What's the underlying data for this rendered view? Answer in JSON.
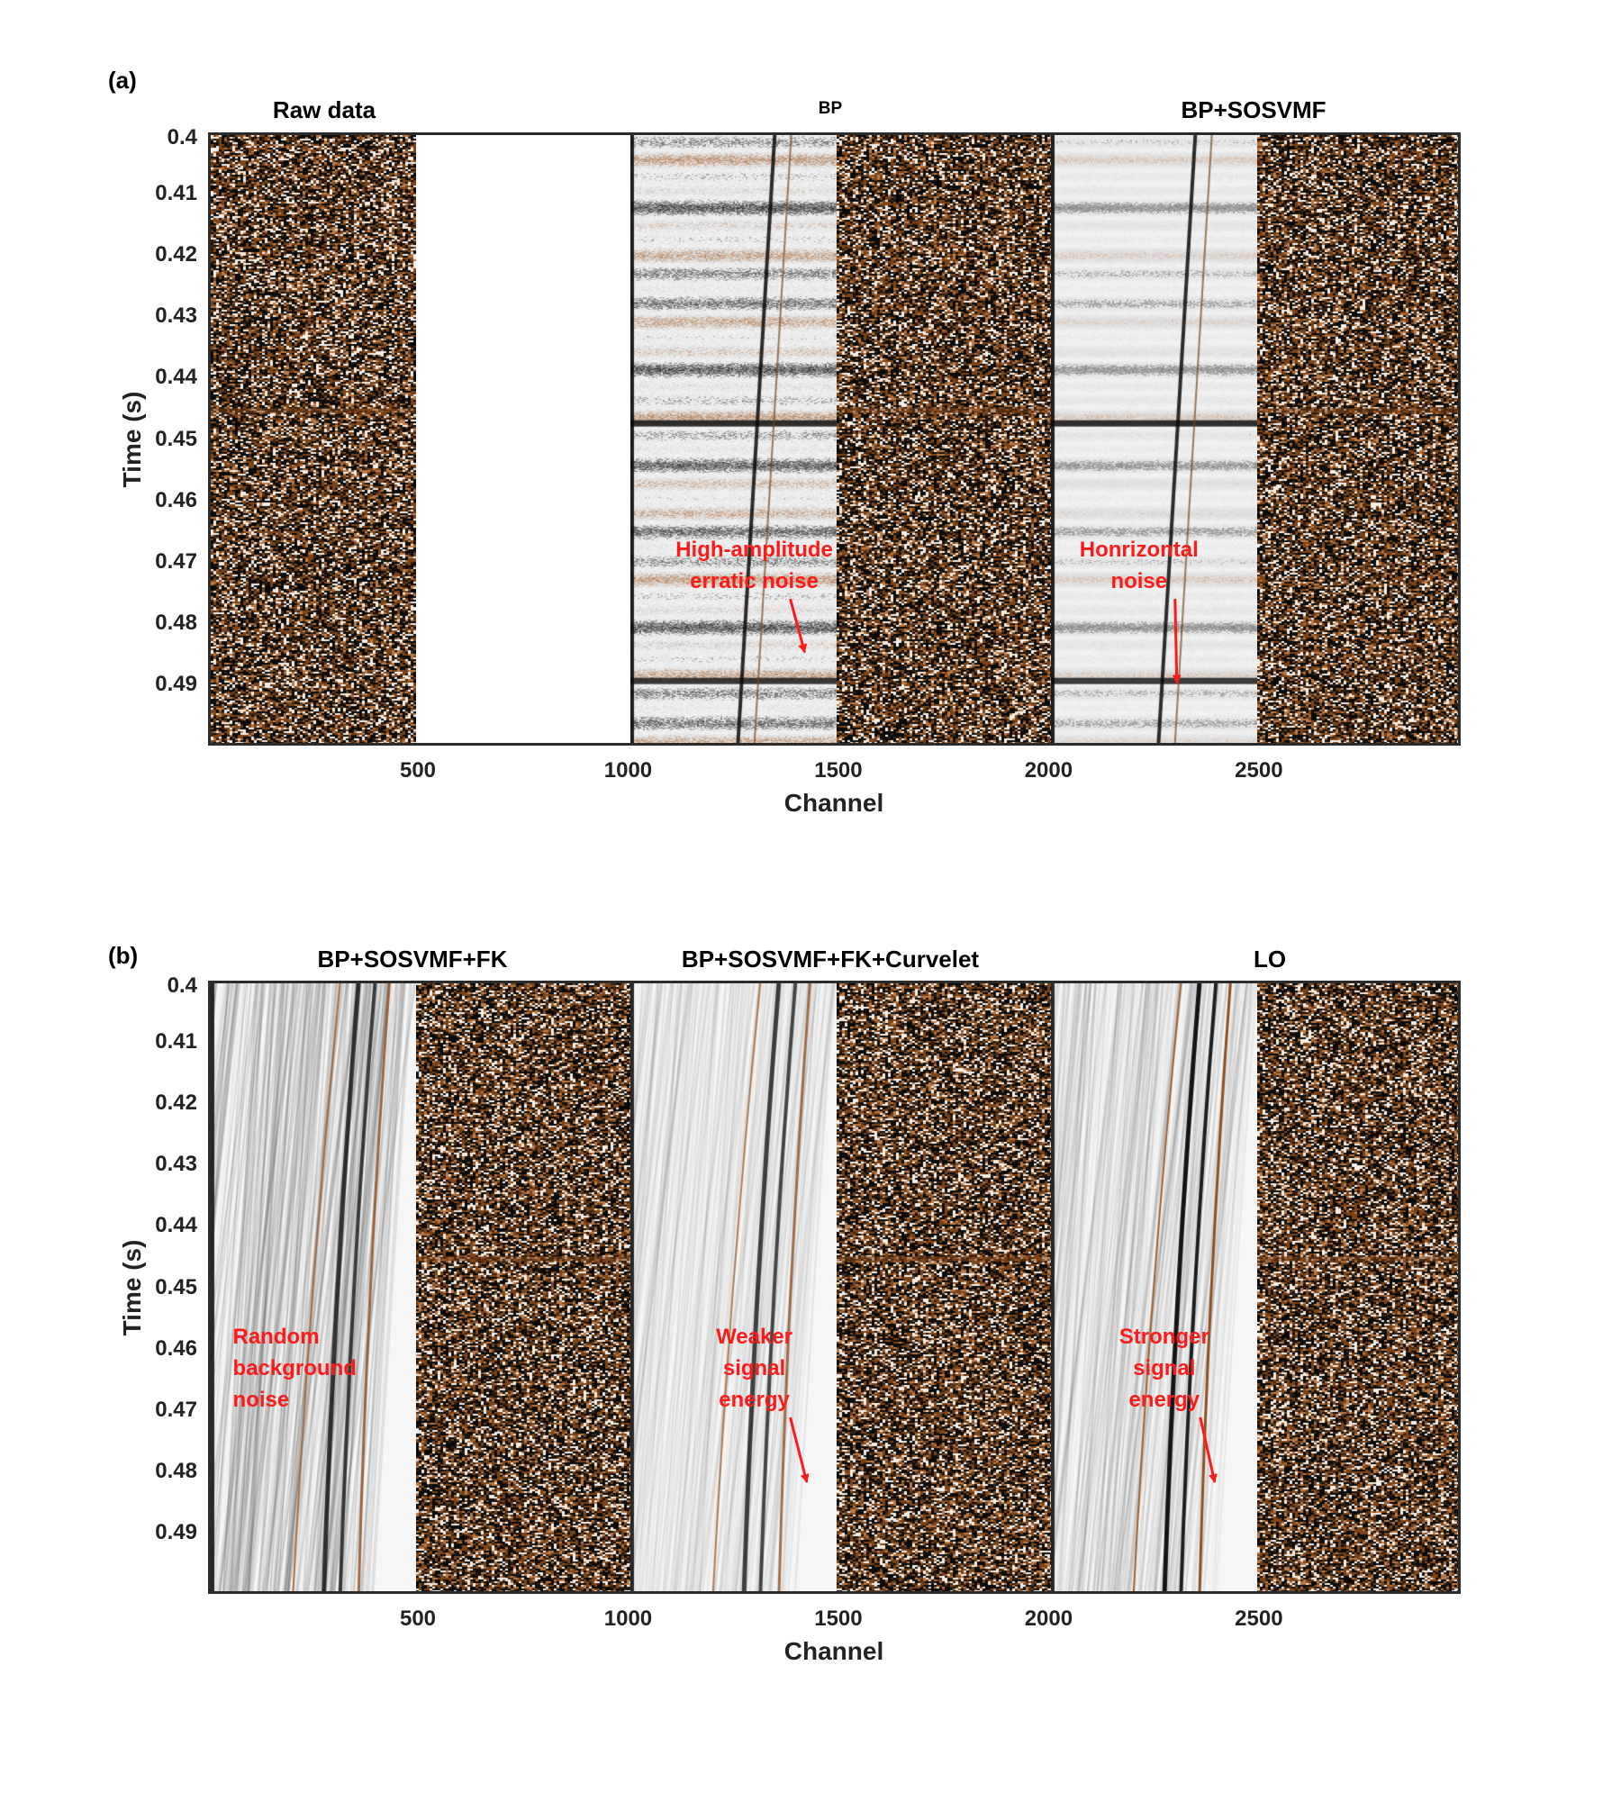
{
  "chart_data": [
    {
      "type": "heatmap",
      "panel_label": "(a)",
      "titles": [
        "Raw data",
        "BP",
        "BP+SOSVMF"
      ],
      "xlabel": "Channel",
      "ylabel": "Time (s)",
      "xlim": [
        1,
        2980
      ],
      "ylim": [
        0.4,
        0.5
      ],
      "x_ticks": [
        500,
        1000,
        1500,
        2000,
        2500
      ],
      "y_ticks": [
        0.4,
        0.41,
        0.42,
        0.43,
        0.44,
        0.45,
        0.46,
        0.47,
        0.48,
        0.49
      ],
      "segments": [
        {
          "x_range": [
            1,
            490
          ],
          "content": "noise"
        },
        {
          "x_range": [
            490,
            1000
          ],
          "content": "blank"
        },
        {
          "x_range": [
            1000,
            1490
          ],
          "content": "bands"
        },
        {
          "x_range": [
            1490,
            2000
          ],
          "content": "noise"
        },
        {
          "x_range": [
            2000,
            2490
          ],
          "content": "bands_soft"
        },
        {
          "x_range": [
            2490,
            2980
          ],
          "content": "noise"
        }
      ],
      "annotations": [
        {
          "lines": [
            "High-amplitude",
            "erratic noise"
          ],
          "text_at": [
            1300,
            0.4655
          ],
          "arrow_to": [
            1420,
            0.4848
          ]
        },
        {
          "lines": [
            "Honrizontal",
            "noise"
          ],
          "text_at": [
            2215,
            0.4655
          ],
          "arrow_to": [
            2305,
            0.4898
          ]
        }
      ]
    },
    {
      "type": "heatmap",
      "panel_label": "(b)",
      "titles": [
        "BP+SOSVMF+FK",
        "BP+SOSVMF+FK+Curvelet",
        "LO"
      ],
      "xlabel": "Channel",
      "ylabel": "Time (s)",
      "xlim": [
        1,
        2980
      ],
      "ylim": [
        0.4,
        0.5
      ],
      "x_ticks": [
        500,
        1000,
        1500,
        2000,
        2500
      ],
      "y_ticks": [
        0.4,
        0.41,
        0.42,
        0.43,
        0.44,
        0.45,
        0.46,
        0.47,
        0.48,
        0.49
      ],
      "segments": [
        {
          "x_range": [
            1,
            490
          ],
          "content": "events_noisy"
        },
        {
          "x_range": [
            490,
            1000
          ],
          "content": "noise"
        },
        {
          "x_range": [
            1000,
            1490
          ],
          "content": "events_smooth"
        },
        {
          "x_range": [
            1490,
            2000
          ],
          "content": "noise"
        },
        {
          "x_range": [
            2000,
            2490
          ],
          "content": "events_strong"
        },
        {
          "x_range": [
            2490,
            2980
          ],
          "content": "noise"
        }
      ],
      "annotations": [
        {
          "lines": [
            "Random",
            "background",
            "noise"
          ],
          "text_at": [
            60,
            0.4555
          ],
          "align": "left"
        },
        {
          "lines": [
            "Weaker",
            "signal",
            "energy"
          ],
          "text_at": [
            1300,
            0.4555
          ],
          "arrow_to": [
            1425,
            0.4818
          ]
        },
        {
          "lines": [
            "Stronger",
            "signal",
            "energy"
          ],
          "text_at": [
            2275,
            0.4555
          ],
          "arrow_to": [
            2395,
            0.4818
          ]
        }
      ]
    }
  ],
  "colors": {
    "annotation": "#ff1a1a",
    "noise_dark": "#0a0a0a",
    "noise_brown": "#8a4a1a",
    "frame": "#2b2b2b"
  }
}
